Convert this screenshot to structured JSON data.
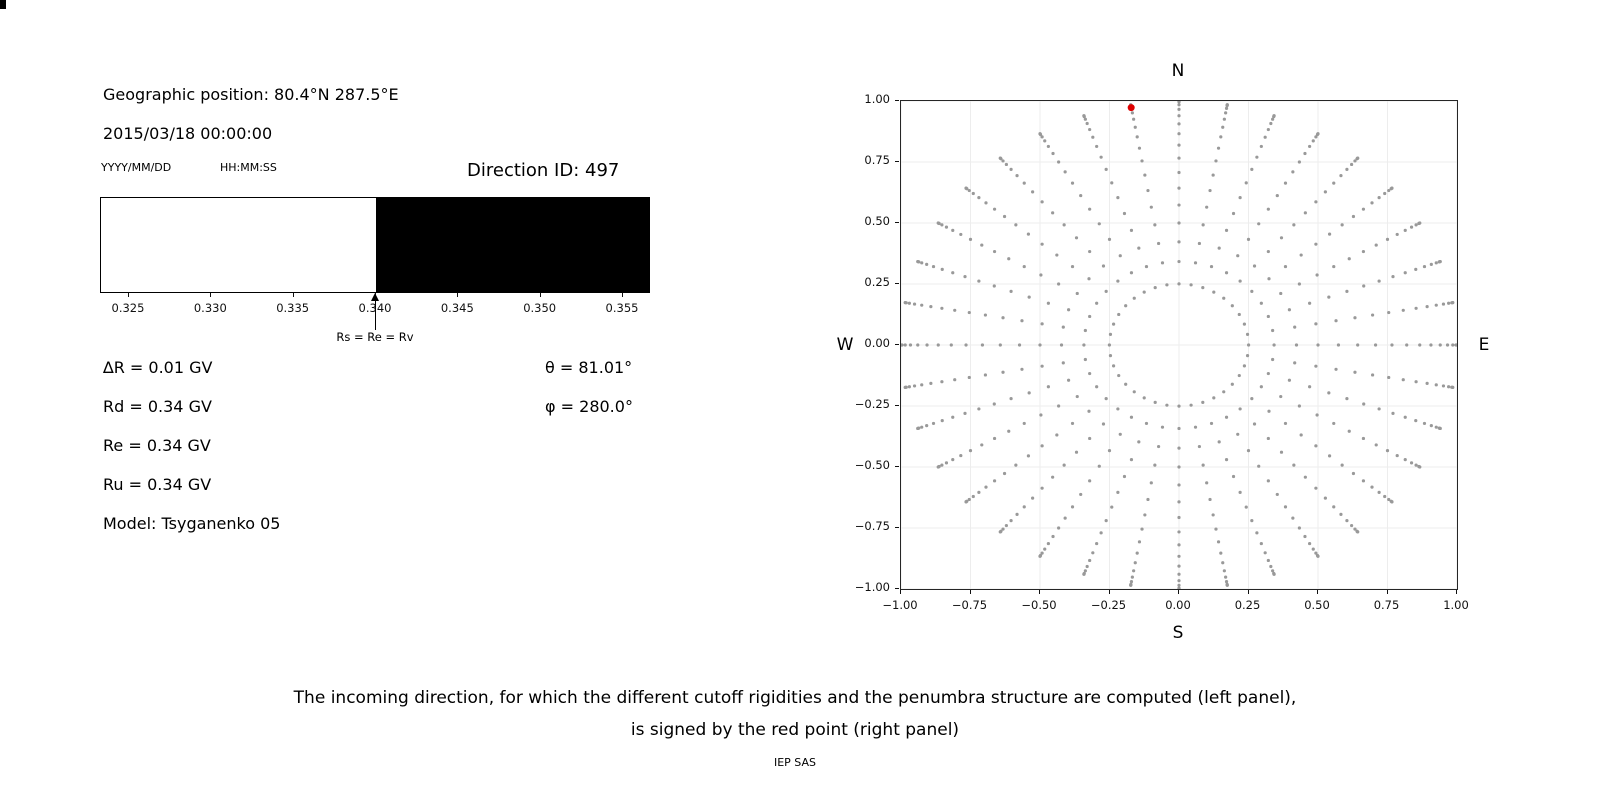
{
  "left_panel": {
    "geo_position": "Geographic position: 80.4°N 287.5°E",
    "datetime": "2015/03/18 00:00:00",
    "date_format_label": "YYYY/MM/DD",
    "time_format_label": "HH:MM:SS",
    "direction_id_label": "Direction ID: 497",
    "info_lines": [
      "∆R = 0.01 GV",
      "Rd = 0.34 GV",
      "Re = 0.34 GV",
      "Ru = 0.34 GV",
      "Model: Tsyganenko 05"
    ],
    "angle_lines": [
      "θ = 81.01°",
      "φ = 280.0°"
    ]
  },
  "caption": {
    "line1": "The incoming direction, for which the different cutoff rigidities and the penumbra structure are computed (left panel),",
    "line2": "is signed by the red point (right panel)",
    "credit": "IEP SAS"
  },
  "chart_data": [
    {
      "type": "area",
      "name": "penumbra-structure",
      "xlim": [
        0.3233,
        0.3567
      ],
      "x_ticks": [
        0.325,
        0.33,
        0.335,
        0.34,
        0.345,
        0.35,
        0.355
      ],
      "x_tick_labels": [
        "0.325",
        "0.330",
        "0.335",
        "0.340",
        "0.345",
        "0.350",
        "0.355"
      ],
      "regions": [
        {
          "from": 0.3233,
          "to": 0.34,
          "color": "#ffffff"
        },
        {
          "from": 0.34,
          "to": 0.3567,
          "color": "#000000"
        }
      ],
      "annotation": {
        "x": 0.34,
        "label": "Rs = Re = Rv"
      }
    },
    {
      "type": "scatter",
      "name": "incoming-direction-grid",
      "xlim": [
        -1,
        1
      ],
      "ylim": [
        -1,
        1
      ],
      "x_ticks": [
        -1.0,
        -0.75,
        -0.5,
        -0.25,
        0.0,
        0.25,
        0.5,
        0.75,
        1.0
      ],
      "x_tick_labels": [
        "−1.00",
        "−0.75",
        "−0.50",
        "−0.25",
        "0.00",
        "0.25",
        "0.50",
        "0.75",
        "1.00"
      ],
      "y_ticks": [
        1.0,
        0.75,
        0.5,
        0.25,
        0.0,
        -0.25,
        -0.5,
        -0.75,
        -1.0
      ],
      "y_tick_labels": [
        "1.00",
        "0.75",
        "0.50",
        "0.25",
        "0.00",
        "−0.25",
        "−0.50",
        "−0.75",
        "−1.00"
      ],
      "grid": true,
      "compass_labels": {
        "top": "N",
        "bottom": "S",
        "left": "W",
        "right": "E"
      },
      "grid_points": {
        "azimuth_start_deg": 0,
        "azimuth_step_deg": 10,
        "azimuth_count": 36,
        "zenith_angles_deg": [
          14.5,
          20,
          25,
          30,
          35,
          40,
          45,
          50,
          55,
          60,
          65,
          70,
          75,
          80,
          85,
          88,
          90
        ],
        "radius": "sin(zenith)",
        "color": "#999999"
      },
      "red_point": {
        "x": -0.172,
        "y": 0.973,
        "color": "#dd0000"
      }
    }
  ]
}
